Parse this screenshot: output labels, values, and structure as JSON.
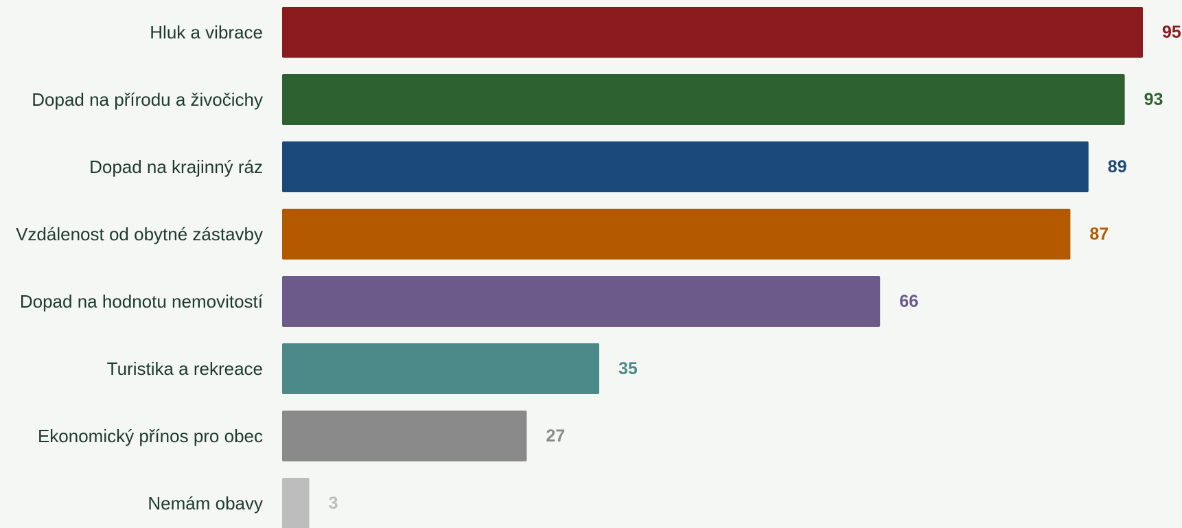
{
  "chart_data": {
    "type": "bar",
    "orientation": "horizontal",
    "title": "",
    "xlabel": "",
    "ylabel": "",
    "xlim": [
      0,
      100
    ],
    "grid": false,
    "legend": "none",
    "categories": [
      "Hluk a vibrace",
      "Dopad na přírodu a živočichy",
      "Dopad na krajinný ráz",
      "Vzdálenost od obytné zástavby",
      "Dopad na hodnotu nemovitostí",
      "Turistika a rekreace",
      "Ekonomický přínos pro obec",
      "Nemám obavy"
    ],
    "values": [
      95,
      93,
      89,
      87,
      66,
      35,
      27,
      3
    ],
    "colors": [
      "#8b1a1c",
      "#2e6130",
      "#1b4a7a",
      "#b35a00",
      "#6b5a8a",
      "#4c8a8a",
      "#8a8a8a",
      "#bdbdbd"
    ]
  }
}
